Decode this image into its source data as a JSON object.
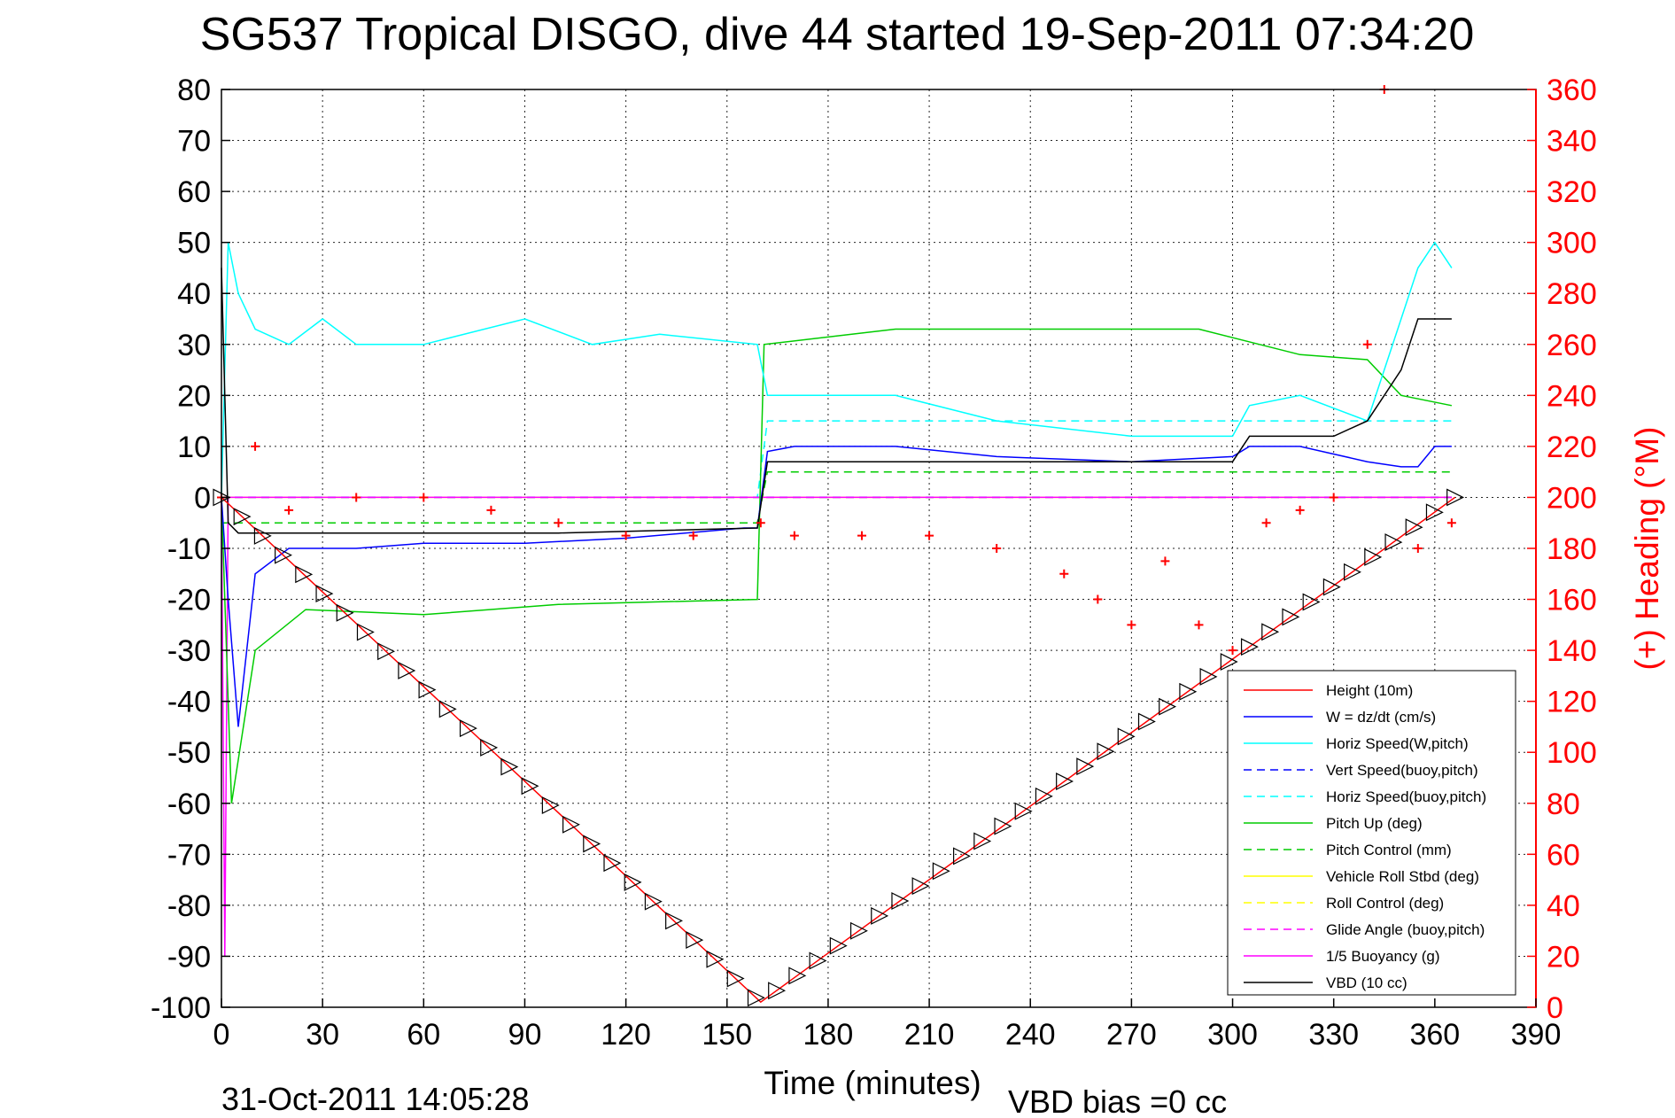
{
  "chart_data": {
    "type": "line",
    "title": "SG537 Tropical DISGO, dive 44 started 19-Sep-2011 07:34:20",
    "xlabel": "Time (minutes)",
    "ylabel": "",
    "y2label": "(+) Heading (°M)",
    "xlim": [
      0,
      390
    ],
    "ylim": [
      -100,
      80
    ],
    "y2lim": [
      0,
      360
    ],
    "xticks": [
      0,
      30,
      60,
      90,
      120,
      150,
      180,
      210,
      240,
      270,
      300,
      330,
      360,
      390
    ],
    "yticks": [
      -100,
      -90,
      -80,
      -70,
      -60,
      -50,
      -40,
      -30,
      -20,
      -10,
      0,
      10,
      20,
      30,
      40,
      50,
      60,
      70,
      80
    ],
    "y2ticks": [
      0,
      20,
      40,
      60,
      80,
      100,
      120,
      140,
      160,
      180,
      200,
      220,
      240,
      260,
      280,
      300,
      320,
      340,
      360
    ],
    "grid": true,
    "legend_position": "bottom-right",
    "footer_date": "31-Oct-2011 14:05:28",
    "footer_note": "VBD bias =0 cc",
    "series": [
      {
        "name": "Height (10m)",
        "color": "#ff0000",
        "style": "solid",
        "axis": "left",
        "x": [
          0,
          160,
          366
        ],
        "y": [
          0,
          -99,
          0
        ]
      },
      {
        "name": "W = dz/dt (cm/s)",
        "color": "#0000ff",
        "style": "solid",
        "axis": "left",
        "x": [
          0,
          2,
          5,
          10,
          20,
          40,
          60,
          90,
          120,
          155,
          159,
          162,
          170,
          200,
          230,
          270,
          300,
          305,
          320,
          340,
          350,
          355,
          360,
          365
        ],
        "y": [
          0,
          -20,
          -45,
          -15,
          -10,
          -10,
          -9,
          -9,
          -8,
          -6,
          -6,
          9,
          10,
          10,
          8,
          7,
          8,
          10,
          10,
          7,
          6,
          6,
          10,
          10
        ]
      },
      {
        "name": "Horiz Speed(W,pitch)",
        "color": "#00ffff",
        "style": "solid",
        "axis": "left",
        "x": [
          0,
          2,
          5,
          10,
          20,
          30,
          40,
          60,
          90,
          110,
          130,
          159,
          162,
          170,
          200,
          230,
          270,
          300,
          305,
          320,
          340,
          350,
          355,
          360,
          365
        ],
        "y": [
          0,
          50,
          40,
          33,
          30,
          35,
          30,
          30,
          35,
          30,
          32,
          30,
          20,
          20,
          20,
          15,
          12,
          12,
          18,
          20,
          15,
          35,
          45,
          50,
          45
        ]
      },
      {
        "name": "Vert Speed(buoy,pitch)",
        "color": "#0000ff",
        "style": "dashed",
        "axis": "left",
        "x": [
          0,
          365
        ],
        "y": [
          0,
          0
        ]
      },
      {
        "name": "Horiz Speed(buoy,pitch)",
        "color": "#00ffff",
        "style": "dashed",
        "axis": "left",
        "x": [
          0,
          159,
          162,
          365
        ],
        "y": [
          0,
          0,
          15,
          15
        ]
      },
      {
        "name": "Pitch Up (deg)",
        "color": "#00cc00",
        "style": "solid",
        "axis": "left",
        "x": [
          0,
          3,
          10,
          25,
          60,
          100,
          159,
          161,
          200,
          240,
          290,
          320,
          340,
          350,
          365
        ],
        "y": [
          0,
          -60,
          -30,
          -22,
          -23,
          -21,
          -20,
          30,
          33,
          33,
          33,
          28,
          27,
          20,
          18
        ]
      },
      {
        "name": "Pitch Control (mm)",
        "color": "#00cc00",
        "style": "dashed",
        "axis": "left",
        "x": [
          0,
          159,
          162,
          365
        ],
        "y": [
          -5,
          -5,
          5,
          5
        ]
      },
      {
        "name": "Vehicle Roll Stbd (deg)",
        "color": "#ffff00",
        "style": "solid",
        "axis": "left",
        "x": [
          0,
          365
        ],
        "y": [
          0,
          0
        ]
      },
      {
        "name": "Roll Control (deg)",
        "color": "#ffff00",
        "style": "dashed",
        "axis": "left",
        "x": [
          0,
          365
        ],
        "y": [
          0,
          0
        ]
      },
      {
        "name": "Glide Angle (buoy,pitch)",
        "color": "#ff00ff",
        "style": "dashed",
        "axis": "left",
        "x": [
          0,
          365
        ],
        "y": [
          0,
          0
        ]
      },
      {
        "name": "1/5 Buoyancy (g)",
        "color": "#ff00ff",
        "style": "solid",
        "axis": "left",
        "x": [
          0,
          1,
          2,
          365
        ],
        "y": [
          0,
          -90,
          0,
          0
        ]
      },
      {
        "name": "VBD (10 cc)",
        "color": "#000000",
        "style": "solid",
        "axis": "left",
        "x": [
          0,
          2,
          5,
          100,
          159,
          162,
          300,
          305,
          330,
          340,
          345,
          350,
          355,
          365
        ],
        "y": [
          45,
          -5,
          -7,
          -7,
          -6,
          7,
          7,
          12,
          12,
          15,
          20,
          25,
          35,
          35
        ]
      },
      {
        "name": "(+) Heading (°M)",
        "color": "#ff0000",
        "style": "markers",
        "axis": "right",
        "x": [
          0,
          10,
          20,
          40,
          60,
          80,
          100,
          120,
          140,
          160,
          170,
          190,
          210,
          230,
          250,
          260,
          270,
          280,
          290,
          300,
          310,
          320,
          330,
          340,
          345,
          355,
          365
        ],
        "y": [
          200,
          220,
          195,
          200,
          200,
          195,
          190,
          185,
          185,
          190,
          185,
          185,
          185,
          180,
          170,
          160,
          150,
          175,
          150,
          140,
          190,
          195,
          200,
          260,
          360,
          180,
          190
        ]
      }
    ]
  }
}
